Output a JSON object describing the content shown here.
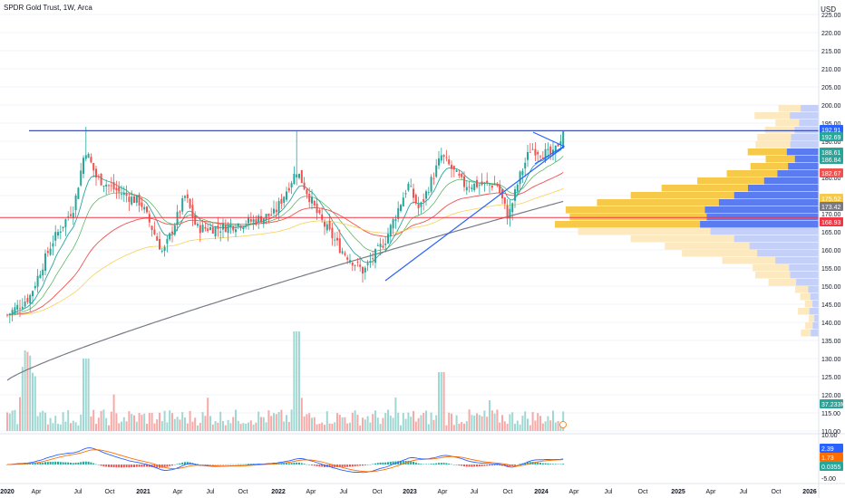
{
  "header": {
    "symbol": "SPDR Gold Trust, 1W, Arca",
    "currency": "USD"
  },
  "price_axis": {
    "ticks": [
      "225.00",
      "220.00",
      "215.00",
      "210.00",
      "205.00",
      "200.00",
      "195.00",
      "190.00",
      "185.00",
      "180.00",
      "175.00",
      "170.00",
      "165.00",
      "160.00",
      "155.00",
      "150.00",
      "145.00",
      "140.00",
      "135.00",
      "130.00",
      "125.00",
      "120.00",
      "115.00",
      "110.00"
    ],
    "ylim": [
      110,
      227
    ]
  },
  "macd_axis": {
    "ticks": [
      "10.00",
      "-5.00"
    ]
  },
  "time_axis": [
    "2020",
    "Apr",
    "Jul",
    "Oct",
    "2021",
    "Apr",
    "Jul",
    "Oct",
    "2022",
    "Apr",
    "Jul",
    "Oct",
    "2023",
    "Apr",
    "Jul",
    "Oct",
    "2024",
    "Apr",
    "Jul",
    "Oct",
    "2025",
    "Apr",
    "Jul",
    "Oct",
    "2026"
  ],
  "price_badges": [
    {
      "text": "192.91",
      "color": "#2962ff"
    },
    {
      "text": "192.69",
      "color": "#26a69a"
    },
    {
      "text": "188.61",
      "color": "#26a69a"
    },
    {
      "text": "186.84",
      "color": "#26a69a"
    },
    {
      "text": "182.67",
      "color": "#ef5350"
    },
    {
      "text": "175.52",
      "color": "#f7c948"
    },
    {
      "text": "173.42",
      "color": "#787b86"
    },
    {
      "text": "168.93",
      "color": "#f23645"
    }
  ],
  "volume_badge": {
    "text": "37.233M",
    "color": "#26a69a"
  },
  "macd_badges": [
    {
      "text": "2.39",
      "color": "#2962ff"
    },
    {
      "text": "1.73",
      "color": "#ff6d00"
    },
    {
      "text": "0.0355",
      "color": "#26a69a"
    }
  ],
  "colors": {
    "up": "#26a69a",
    "down": "#ef5350",
    "resistance": "#3f51b5",
    "support_line": "#f23645",
    "trendline": "#2962ff",
    "ema_fast": "#26a69a",
    "ema_mid": "#ef5350",
    "ema_slow": "#f7d154",
    "ema_long": "#787b86"
  },
  "chart_data": {
    "type": "candlestick",
    "title": "SPDR Gold Trust, 1W, Arca",
    "currency": "USD",
    "resistance_level": 192.91,
    "support_level": 168.93,
    "last_close": 192.69,
    "close_path": [
      {
        "t": "2020-01",
        "v": 142
      },
      {
        "t": "2020-03",
        "v": 147
      },
      {
        "t": "2020-05",
        "v": 162
      },
      {
        "t": "2020-07",
        "v": 172
      },
      {
        "t": "2020-08",
        "v": 188
      },
      {
        "t": "2020-09",
        "v": 180
      },
      {
        "t": "2020-11",
        "v": 176
      },
      {
        "t": "2021-01",
        "v": 173
      },
      {
        "t": "2021-03",
        "v": 159
      },
      {
        "t": "2021-05",
        "v": 175
      },
      {
        "t": "2021-06",
        "v": 166
      },
      {
        "t": "2021-08",
        "v": 166
      },
      {
        "t": "2021-11",
        "v": 168
      },
      {
        "t": "2022-01",
        "v": 170
      },
      {
        "t": "2022-03",
        "v": 182
      },
      {
        "t": "2022-05",
        "v": 169
      },
      {
        "t": "2022-07",
        "v": 160
      },
      {
        "t": "2022-09",
        "v": 154
      },
      {
        "t": "2022-11",
        "v": 163
      },
      {
        "t": "2023-01",
        "v": 178
      },
      {
        "t": "2023-02",
        "v": 171
      },
      {
        "t": "2023-04",
        "v": 186
      },
      {
        "t": "2023-06",
        "v": 178
      },
      {
        "t": "2023-09",
        "v": 178
      },
      {
        "t": "2023-10",
        "v": 169
      },
      {
        "t": "2023-11",
        "v": 180
      },
      {
        "t": "2023-12",
        "v": 188
      },
      {
        "t": "2024-02",
        "v": 186
      },
      {
        "t": "2024-03",
        "v": 193
      }
    ],
    "volume_profile_range": [
      136,
      200
    ]
  }
}
